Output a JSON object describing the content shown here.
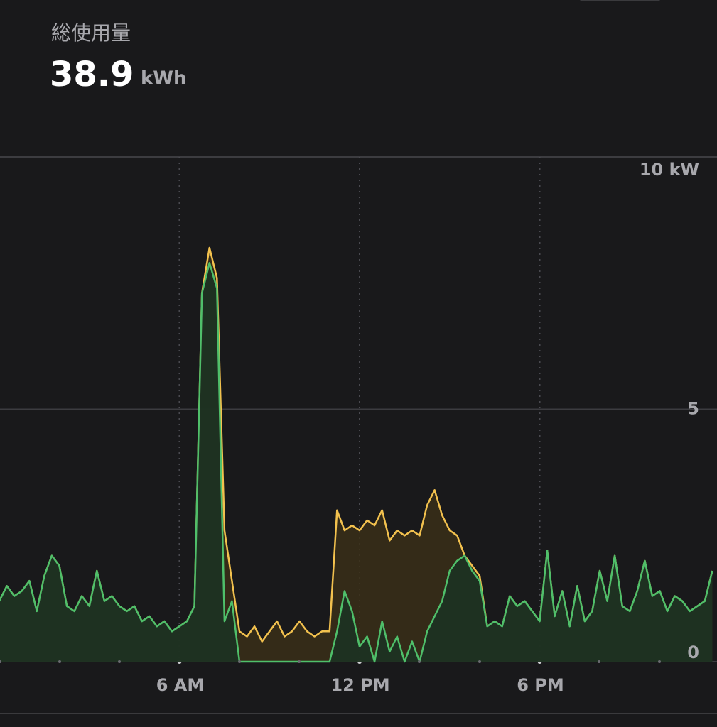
{
  "header": {
    "label": "総使用量",
    "value": "38.9",
    "unit": "kWh"
  },
  "chart_data": {
    "type": "area",
    "x": [
      0,
      0.25,
      0.5,
      0.75,
      1,
      1.25,
      1.5,
      1.75,
      2,
      2.25,
      2.5,
      2.75,
      3,
      3.25,
      3.5,
      3.75,
      4,
      4.25,
      4.5,
      4.75,
      5,
      5.25,
      5.5,
      5.75,
      6,
      6.25,
      6.5,
      6.75,
      7,
      7.25,
      7.5,
      7.75,
      8,
      8.25,
      8.5,
      8.75,
      9,
      9.25,
      9.5,
      9.75,
      10,
      10.25,
      10.5,
      10.75,
      11,
      11.25,
      11.5,
      11.75,
      12,
      12.25,
      12.5,
      12.75,
      13,
      13.25,
      13.5,
      13.75,
      14,
      14.25,
      14.5,
      14.75,
      15,
      15.25,
      15.5,
      15.75,
      16,
      16.25,
      16.5,
      16.75,
      17,
      17.25,
      17.5,
      17.75,
      18,
      18.25,
      18.5,
      18.75,
      19,
      19.25,
      19.5,
      19.75,
      20,
      20.25,
      20.5,
      20.75,
      21,
      21.25,
      21.5,
      21.75,
      22,
      22.25,
      22.5,
      22.75,
      23,
      23.25,
      23.5,
      23.75
    ],
    "series": [
      {
        "color": "#f2c14e",
        "fill": "#3a2f17",
        "values": [
          1.2,
          1.5,
          1.3,
          1.4,
          1.6,
          1.0,
          1.7,
          2.1,
          1.9,
          1.1,
          1.0,
          1.3,
          1.1,
          1.8,
          1.2,
          1.3,
          1.1,
          1.0,
          1.1,
          0.8,
          0.9,
          0.7,
          0.8,
          0.6,
          0.7,
          0.8,
          1.1,
          7.3,
          8.2,
          7.6,
          2.6,
          1.6,
          0.6,
          0.5,
          0.7,
          0.4,
          0.6,
          0.8,
          0.5,
          0.6,
          0.8,
          0.6,
          0.5,
          0.6,
          0.6,
          3.0,
          2.6,
          2.7,
          2.6,
          2.8,
          2.7,
          3.0,
          2.4,
          2.6,
          2.5,
          2.6,
          2.5,
          3.1,
          3.4,
          2.9,
          2.6,
          2.5,
          2.1,
          1.9,
          1.7,
          0.7,
          0.8,
          0.7,
          1.3,
          1.1,
          1.2,
          1.0,
          0.8,
          2.2,
          0.9,
          1.4,
          0.7,
          1.5,
          0.8,
          1.0,
          1.8,
          1.2,
          2.1,
          1.1,
          1.0,
          1.4,
          2.0,
          1.3,
          1.4,
          1.0,
          1.3,
          1.2,
          1.0,
          1.1,
          1.2,
          1.8
        ]
      },
      {
        "color": "#4fbf6a",
        "fill": "#1b3323",
        "values": [
          1.2,
          1.5,
          1.3,
          1.4,
          1.6,
          1.0,
          1.7,
          2.1,
          1.9,
          1.1,
          1.0,
          1.3,
          1.1,
          1.8,
          1.2,
          1.3,
          1.1,
          1.0,
          1.1,
          0.8,
          0.9,
          0.7,
          0.8,
          0.6,
          0.7,
          0.8,
          1.1,
          7.3,
          7.9,
          7.4,
          0.8,
          1.2,
          0,
          0,
          0,
          0,
          0,
          0,
          0,
          0,
          0,
          0,
          0,
          0,
          0,
          0.6,
          1.4,
          1.0,
          0.3,
          0.5,
          0,
          0.8,
          0.2,
          0.5,
          0,
          0.4,
          0,
          0.6,
          0.9,
          1.2,
          1.8,
          2.0,
          2.1,
          1.8,
          1.6,
          0.7,
          0.8,
          0.7,
          1.3,
          1.1,
          1.2,
          1.0,
          0.8,
          2.2,
          0.9,
          1.4,
          0.7,
          1.5,
          0.8,
          1.0,
          1.8,
          1.2,
          2.1,
          1.1,
          1.0,
          1.4,
          2.0,
          1.3,
          1.4,
          1.0,
          1.3,
          1.2,
          1.0,
          1.1,
          1.2,
          1.8
        ]
      }
    ],
    "xlim": [
      0,
      24
    ],
    "xticks": [
      {
        "value": 6,
        "label": "6 AM"
      },
      {
        "value": 12,
        "label": "12 PM"
      },
      {
        "value": 18,
        "label": "6 PM"
      }
    ],
    "ylim": [
      0,
      10
    ],
    "yticks": [
      0,
      5,
      {
        "value": 10,
        "label": "10 kW"
      }
    ],
    "grid": true
  }
}
